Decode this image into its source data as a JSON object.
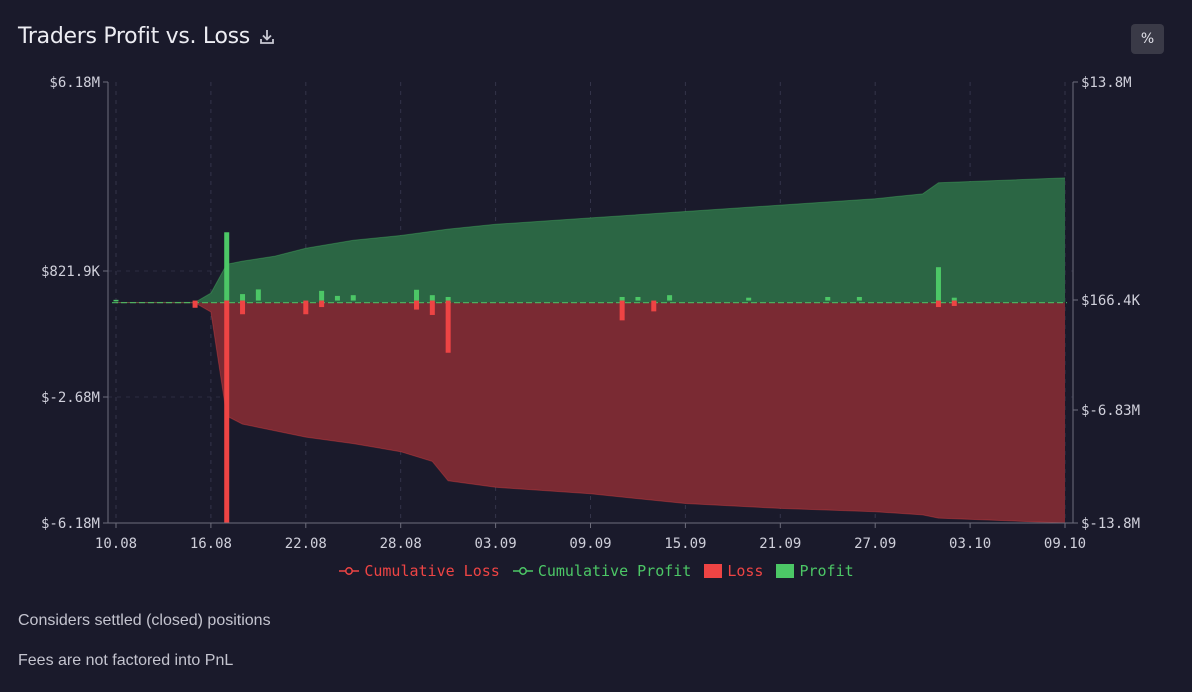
{
  "header": {
    "title": "Traders Profit vs. Loss",
    "percent_button": "%"
  },
  "notes": {
    "line1": "Considers settled (closed) positions",
    "line2": "Fees are not factored into PnL"
  },
  "colors": {
    "profit": "#4cc766",
    "loss": "#ee4444",
    "profit_area": "#2b6644",
    "loss_area": "#7a2a33",
    "background": "#1a1a2b",
    "axis": "#6d6d7c"
  },
  "chart_data": {
    "type": "bar",
    "title": "Traders Profit vs. Loss",
    "x_ticks": [
      "10.08",
      "16.08",
      "22.08",
      "28.08",
      "03.09",
      "09.09",
      "15.09",
      "21.09",
      "27.09",
      "03.10",
      "09.10"
    ],
    "left_axis": {
      "ticks": [
        "$6.18M",
        "$821.9K",
        "$-2.68M",
        "$-6.18M"
      ],
      "values": [
        6180000,
        821900,
        -2680000,
        -6180000
      ]
    },
    "right_axis": {
      "ticks": [
        "$13.8M",
        "$166.4K",
        "$-6.83M",
        "$-13.8M"
      ],
      "values": [
        13800000,
        166400,
        -6830000,
        -13800000
      ]
    },
    "legend": [
      "Cumulative Loss",
      "Cumulative Profit",
      "Loss",
      "Profit"
    ],
    "cumulative_profit": {
      "x": [
        "10.08",
        "15.08",
        "16.08",
        "17.08",
        "18.08",
        "20.08",
        "22.08",
        "25.08",
        "28.08",
        "31.08",
        "03.09",
        "09.09",
        "15.09",
        "21.09",
        "27.09",
        "30.09",
        "01.10",
        "09.10"
      ],
      "values": [
        0,
        20000,
        600000,
        2400000,
        2600000,
        2900000,
        3400000,
        3900000,
        4200000,
        4600000,
        4900000,
        5300000,
        5700000,
        6100000,
        6500000,
        6800000,
        7500000,
        7800000
      ]
    },
    "cumulative_loss": {
      "x": [
        "10.08",
        "15.08",
        "16.08",
        "17.08",
        "18.08",
        "20.08",
        "22.08",
        "25.08",
        "28.08",
        "30.08",
        "31.08",
        "03.09",
        "09.09",
        "15.09",
        "21.09",
        "27.09",
        "30.09",
        "01.10",
        "09.10"
      ],
      "values": [
        0,
        -20000,
        -600000,
        -7200000,
        -7700000,
        -8100000,
        -8500000,
        -8900000,
        -9400000,
        -10000000,
        -11200000,
        -11600000,
        -12000000,
        -12600000,
        -12900000,
        -13100000,
        -13300000,
        -13500000,
        -13900000
      ]
    },
    "daily_profit": {
      "x": [
        "10.08",
        "17.08",
        "18.08",
        "19.08",
        "23.08",
        "24.08",
        "25.08",
        "29.08",
        "30.08",
        "31.08",
        "11.09",
        "12.09",
        "14.09",
        "19.09",
        "24.09",
        "26.09",
        "01.10",
        "02.10"
      ],
      "values": [
        20000,
        1920000,
        180000,
        310000,
        270000,
        130000,
        150000,
        300000,
        150000,
        100000,
        100000,
        100000,
        150000,
        80000,
        100000,
        100000,
        930000,
        80000
      ]
    },
    "daily_loss": {
      "x": [
        "15.08",
        "17.08",
        "18.08",
        "22.08",
        "23.08",
        "29.08",
        "30.08",
        "31.08",
        "11.09",
        "13.09",
        "01.10",
        "02.10"
      ],
      "values": [
        -200000,
        -6200000,
        -380000,
        -380000,
        -180000,
        -250000,
        -400000,
        -1450000,
        -550000,
        -300000,
        -180000,
        -150000
      ]
    }
  }
}
